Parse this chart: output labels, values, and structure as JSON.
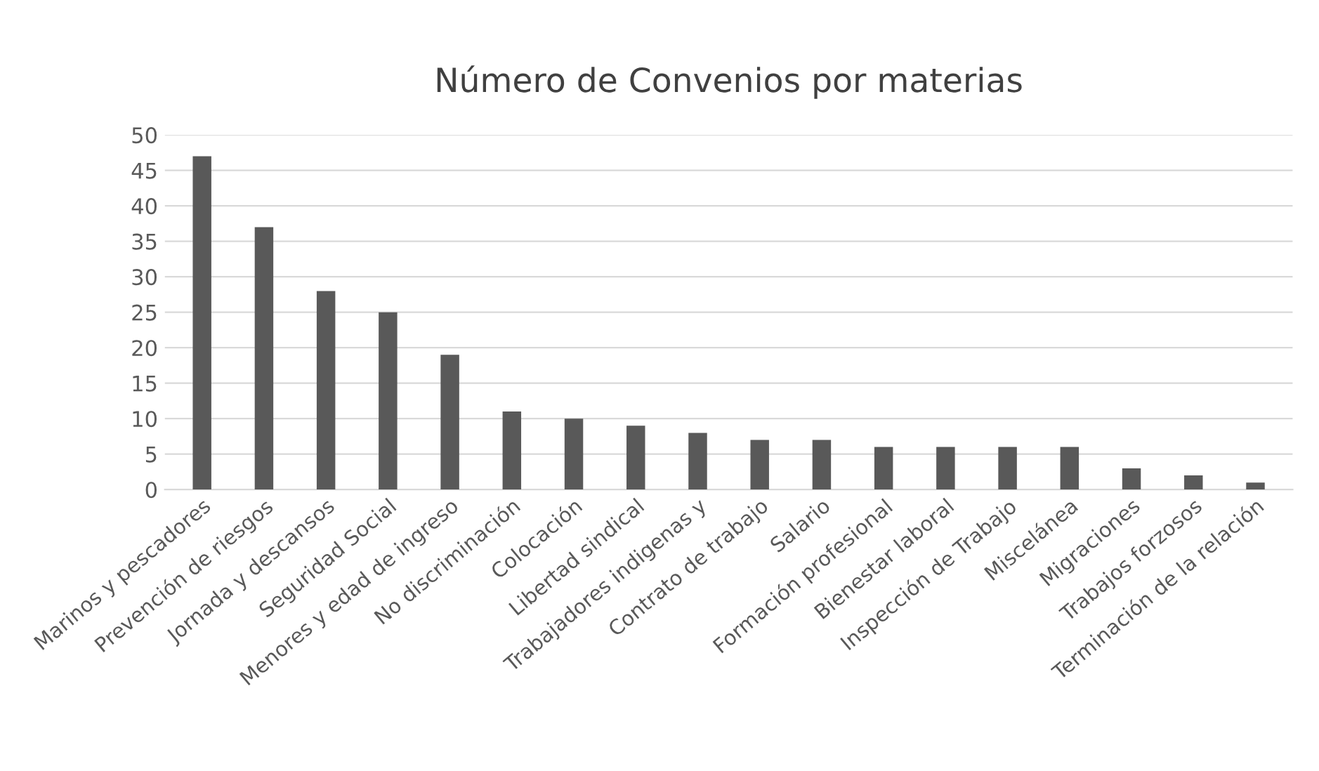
{
  "chart_data": {
    "type": "bar",
    "title": "Número de Convenios por materias",
    "categories": [
      "Marinos y pescadores",
      "Prevención de riesgos",
      "Jornada y descansos",
      "Seguridad Social",
      "Menores y edad de ingreso",
      "No discriminación",
      "Colocación",
      "Libertad sindical",
      "Trabajadores indigenas y",
      "Contrato de trabajo",
      "Salario",
      "Formación profesional",
      "Bienestar laboral",
      "Inspección de Trabajo",
      "Miscelánea",
      "Migraciones",
      "Trabajos forzosos",
      "Terminación de la relación"
    ],
    "values": [
      47,
      37,
      28,
      25,
      19,
      11,
      10,
      9,
      8,
      7,
      7,
      6,
      6,
      6,
      6,
      3,
      2,
      1
    ],
    "color": "#595959",
    "ylim": [
      0,
      50
    ],
    "yticks": [
      0,
      5,
      10,
      15,
      20,
      25,
      30,
      35,
      40,
      45,
      50
    ],
    "grid": "y",
    "legend": false
  }
}
